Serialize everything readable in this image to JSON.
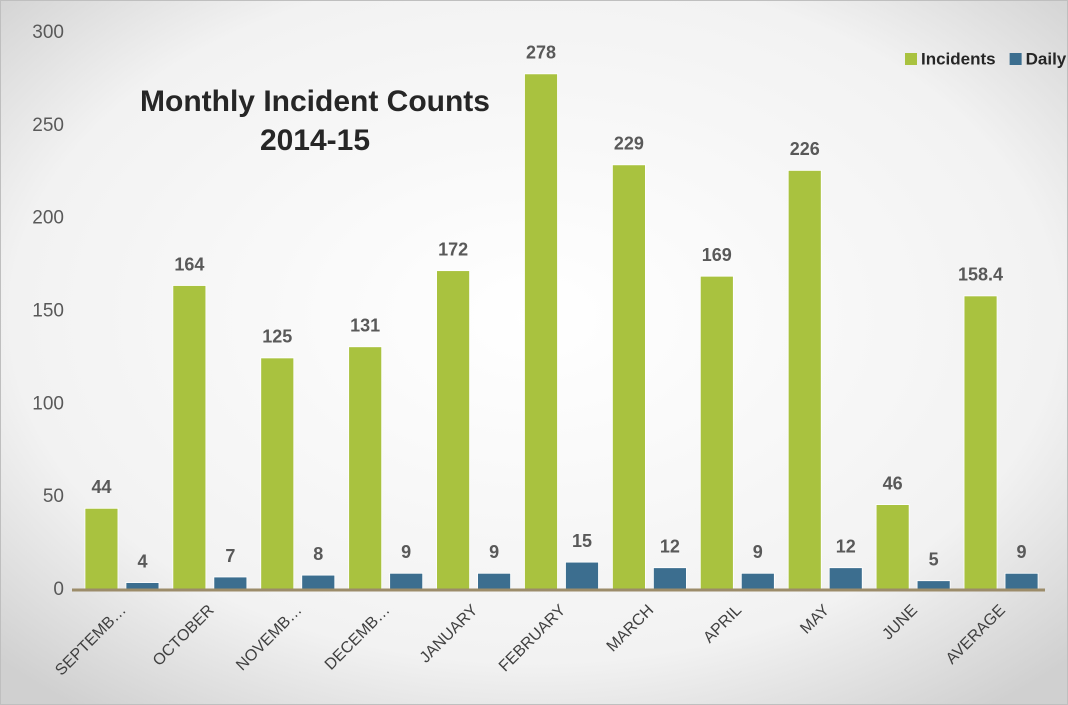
{
  "chart_data": {
    "type": "bar",
    "title": "Monthly Incident Counts",
    "subtitle": "2014-15",
    "categories": [
      "SEPTEMB…",
      "OCTOBER",
      "NOVEMB…",
      "DECEMB…",
      "JANUARY",
      "FEBRUARY",
      "MARCH",
      "APRIL",
      "MAY",
      "JUNE",
      "AVERAGE"
    ],
    "series": [
      {
        "name": "Incidents",
        "color": "#a9c23f",
        "values": [
          44,
          164,
          125,
          131,
          172,
          278,
          229,
          169,
          226,
          46,
          158.4
        ]
      },
      {
        "name": "Daily AVG",
        "color": "#3c6e8f",
        "values": [
          4,
          7,
          8,
          9,
          9,
          15,
          12,
          9,
          12,
          5,
          9
        ]
      }
    ],
    "ylim": [
      0,
      300
    ],
    "yticks": [
      0,
      50,
      100,
      150,
      200,
      250,
      300
    ],
    "grid": false,
    "legend": "top-right"
  }
}
